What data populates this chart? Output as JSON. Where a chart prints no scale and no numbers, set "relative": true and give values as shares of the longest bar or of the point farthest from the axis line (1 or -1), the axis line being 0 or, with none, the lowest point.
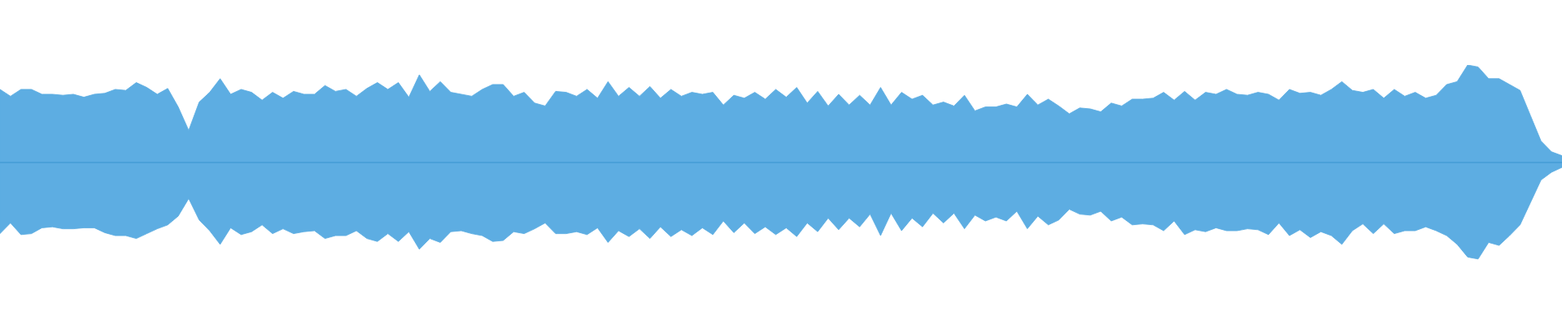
{
  "chart_data": {
    "type": "area",
    "relative": true,
    "categories": [
      null,
      null,
      null,
      null,
      null,
      null,
      null,
      null,
      null,
      null,
      null,
      null,
      null,
      null,
      null,
      null,
      null,
      null,
      null,
      null,
      null,
      null,
      null,
      null,
      null,
      null,
      null,
      null,
      null,
      null,
      null,
      null,
      null,
      null,
      null,
      null,
      null,
      null,
      null,
      null,
      null,
      null,
      null,
      null,
      null,
      null,
      null,
      null,
      null,
      null,
      null,
      null,
      null,
      null,
      null,
      null,
      null,
      null,
      null,
      null,
      null,
      null,
      null,
      null,
      null,
      null,
      null,
      null,
      null,
      null,
      null,
      null,
      null,
      null,
      null,
      null,
      null,
      null,
      null,
      null,
      null,
      null,
      null,
      null,
      null,
      null,
      null,
      null,
      null,
      null,
      null,
      null,
      null,
      null,
      null,
      null,
      null,
      null,
      null,
      null,
      null,
      null,
      null,
      null,
      null,
      null,
      null,
      null,
      null,
      null,
      null,
      null,
      null,
      null,
      null,
      null,
      null,
      null,
      null,
      null,
      null,
      null,
      null,
      null,
      null,
      null,
      null,
      null,
      null,
      null,
      null,
      null,
      null,
      null,
      null,
      null,
      null,
      null,
      null,
      null,
      null,
      null,
      null,
      null,
      null,
      null,
      null,
      null,
      null,
      null
    ],
    "ref_lines": [
      {
        "axis": "y",
        "value": 0,
        "color": "#4a9fd8"
      }
    ],
    "series": [
      {
        "color": "#5dade2",
        "values": [
          0.75,
          0.68,
          0.75,
          0.75,
          0.7,
          0.7,
          0.69,
          0.7,
          0.67,
          0.7,
          0.71,
          0.75,
          0.74,
          0.82,
          0.77,
          0.7,
          0.76,
          0.57,
          0.33,
          0.62,
          0.72,
          0.86,
          0.7,
          0.75,
          0.72,
          0.64,
          0.72,
          0.66,
          0.73,
          0.7,
          0.7,
          0.79,
          0.73,
          0.75,
          0.68,
          0.76,
          0.82,
          0.75,
          0.82,
          0.67,
          0.9,
          0.73,
          0.83,
          0.72,
          0.7,
          0.68,
          0.75,
          0.8,
          0.8,
          0.68,
          0.72,
          0.61,
          0.58,
          0.73,
          0.72,
          0.68,
          0.75,
          0.66,
          0.83,
          0.68,
          0.77,
          0.68,
          0.78,
          0.66,
          0.75,
          0.68,
          0.72,
          0.7,
          0.72,
          0.59,
          0.69,
          0.66,
          0.72,
          0.65,
          0.75,
          0.67,
          0.77,
          0.61,
          0.73,
          0.58,
          0.7,
          0.59,
          0.69,
          0.59,
          0.77,
          0.59,
          0.72,
          0.65,
          0.69,
          0.59,
          0.62,
          0.58,
          0.69,
          0.53,
          0.57,
          0.57,
          0.6,
          0.57,
          0.7,
          0.59,
          0.65,
          0.58,
          0.5,
          0.56,
          0.55,
          0.52,
          0.61,
          0.58,
          0.65,
          0.65,
          0.66,
          0.72,
          0.64,
          0.73,
          0.64,
          0.72,
          0.7,
          0.75,
          0.7,
          0.69,
          0.72,
          0.7,
          0.64,
          0.75,
          0.71,
          0.72,
          0.69,
          0.75,
          0.83,
          0.74,
          0.72,
          0.75,
          0.66,
          0.75,
          0.68,
          0.72,
          0.66,
          0.69,
          0.8,
          0.83,
          1.0,
          0.98,
          0.86,
          0.86,
          0.8,
          0.74,
          0.48,
          0.22,
          0.11,
          0.07
        ]
      },
      {
        "color": "#5dade2",
        "values": [
          -0.73,
          -0.62,
          -0.74,
          -0.73,
          -0.67,
          -0.66,
          -0.68,
          -0.68,
          -0.67,
          -0.67,
          -0.72,
          -0.75,
          -0.75,
          -0.78,
          -0.73,
          -0.68,
          -0.64,
          -0.55,
          -0.37,
          -0.59,
          -0.7,
          -0.84,
          -0.67,
          -0.74,
          -0.71,
          -0.64,
          -0.73,
          -0.68,
          -0.73,
          -0.71,
          -0.7,
          -0.78,
          -0.75,
          -0.75,
          -0.7,
          -0.78,
          -0.81,
          -0.73,
          -0.81,
          -0.71,
          -0.89,
          -0.78,
          -0.82,
          -0.71,
          -0.7,
          -0.73,
          -0.75,
          -0.81,
          -0.8,
          -0.71,
          -0.73,
          -0.68,
          -0.62,
          -0.73,
          -0.73,
          -0.71,
          -0.74,
          -0.67,
          -0.82,
          -0.7,
          -0.76,
          -0.68,
          -0.78,
          -0.66,
          -0.76,
          -0.69,
          -0.75,
          -0.67,
          -0.74,
          -0.6,
          -0.72,
          -0.62,
          -0.73,
          -0.66,
          -0.74,
          -0.67,
          -0.76,
          -0.62,
          -0.71,
          -0.57,
          -0.69,
          -0.57,
          -0.66,
          -0.53,
          -0.75,
          -0.52,
          -0.7,
          -0.57,
          -0.66,
          -0.52,
          -0.62,
          -0.52,
          -0.68,
          -0.54,
          -0.6,
          -0.56,
          -0.6,
          -0.5,
          -0.68,
          -0.55,
          -0.64,
          -0.59,
          -0.48,
          -0.53,
          -0.54,
          -0.5,
          -0.6,
          -0.56,
          -0.64,
          -0.63,
          -0.64,
          -0.7,
          -0.6,
          -0.74,
          -0.69,
          -0.71,
          -0.67,
          -0.7,
          -0.7,
          -0.68,
          -0.69,
          -0.74,
          -0.62,
          -0.75,
          -0.69,
          -0.77,
          -0.71,
          -0.75,
          -0.84,
          -0.7,
          -0.63,
          -0.73,
          -0.63,
          -0.73,
          -0.7,
          -0.7,
          -0.66,
          -0.7,
          -0.75,
          -0.84,
          -0.97,
          -0.99,
          -0.82,
          -0.85,
          -0.75,
          -0.64,
          -0.41,
          -0.18,
          -0.1,
          -0.05
        ]
      }
    ]
  }
}
